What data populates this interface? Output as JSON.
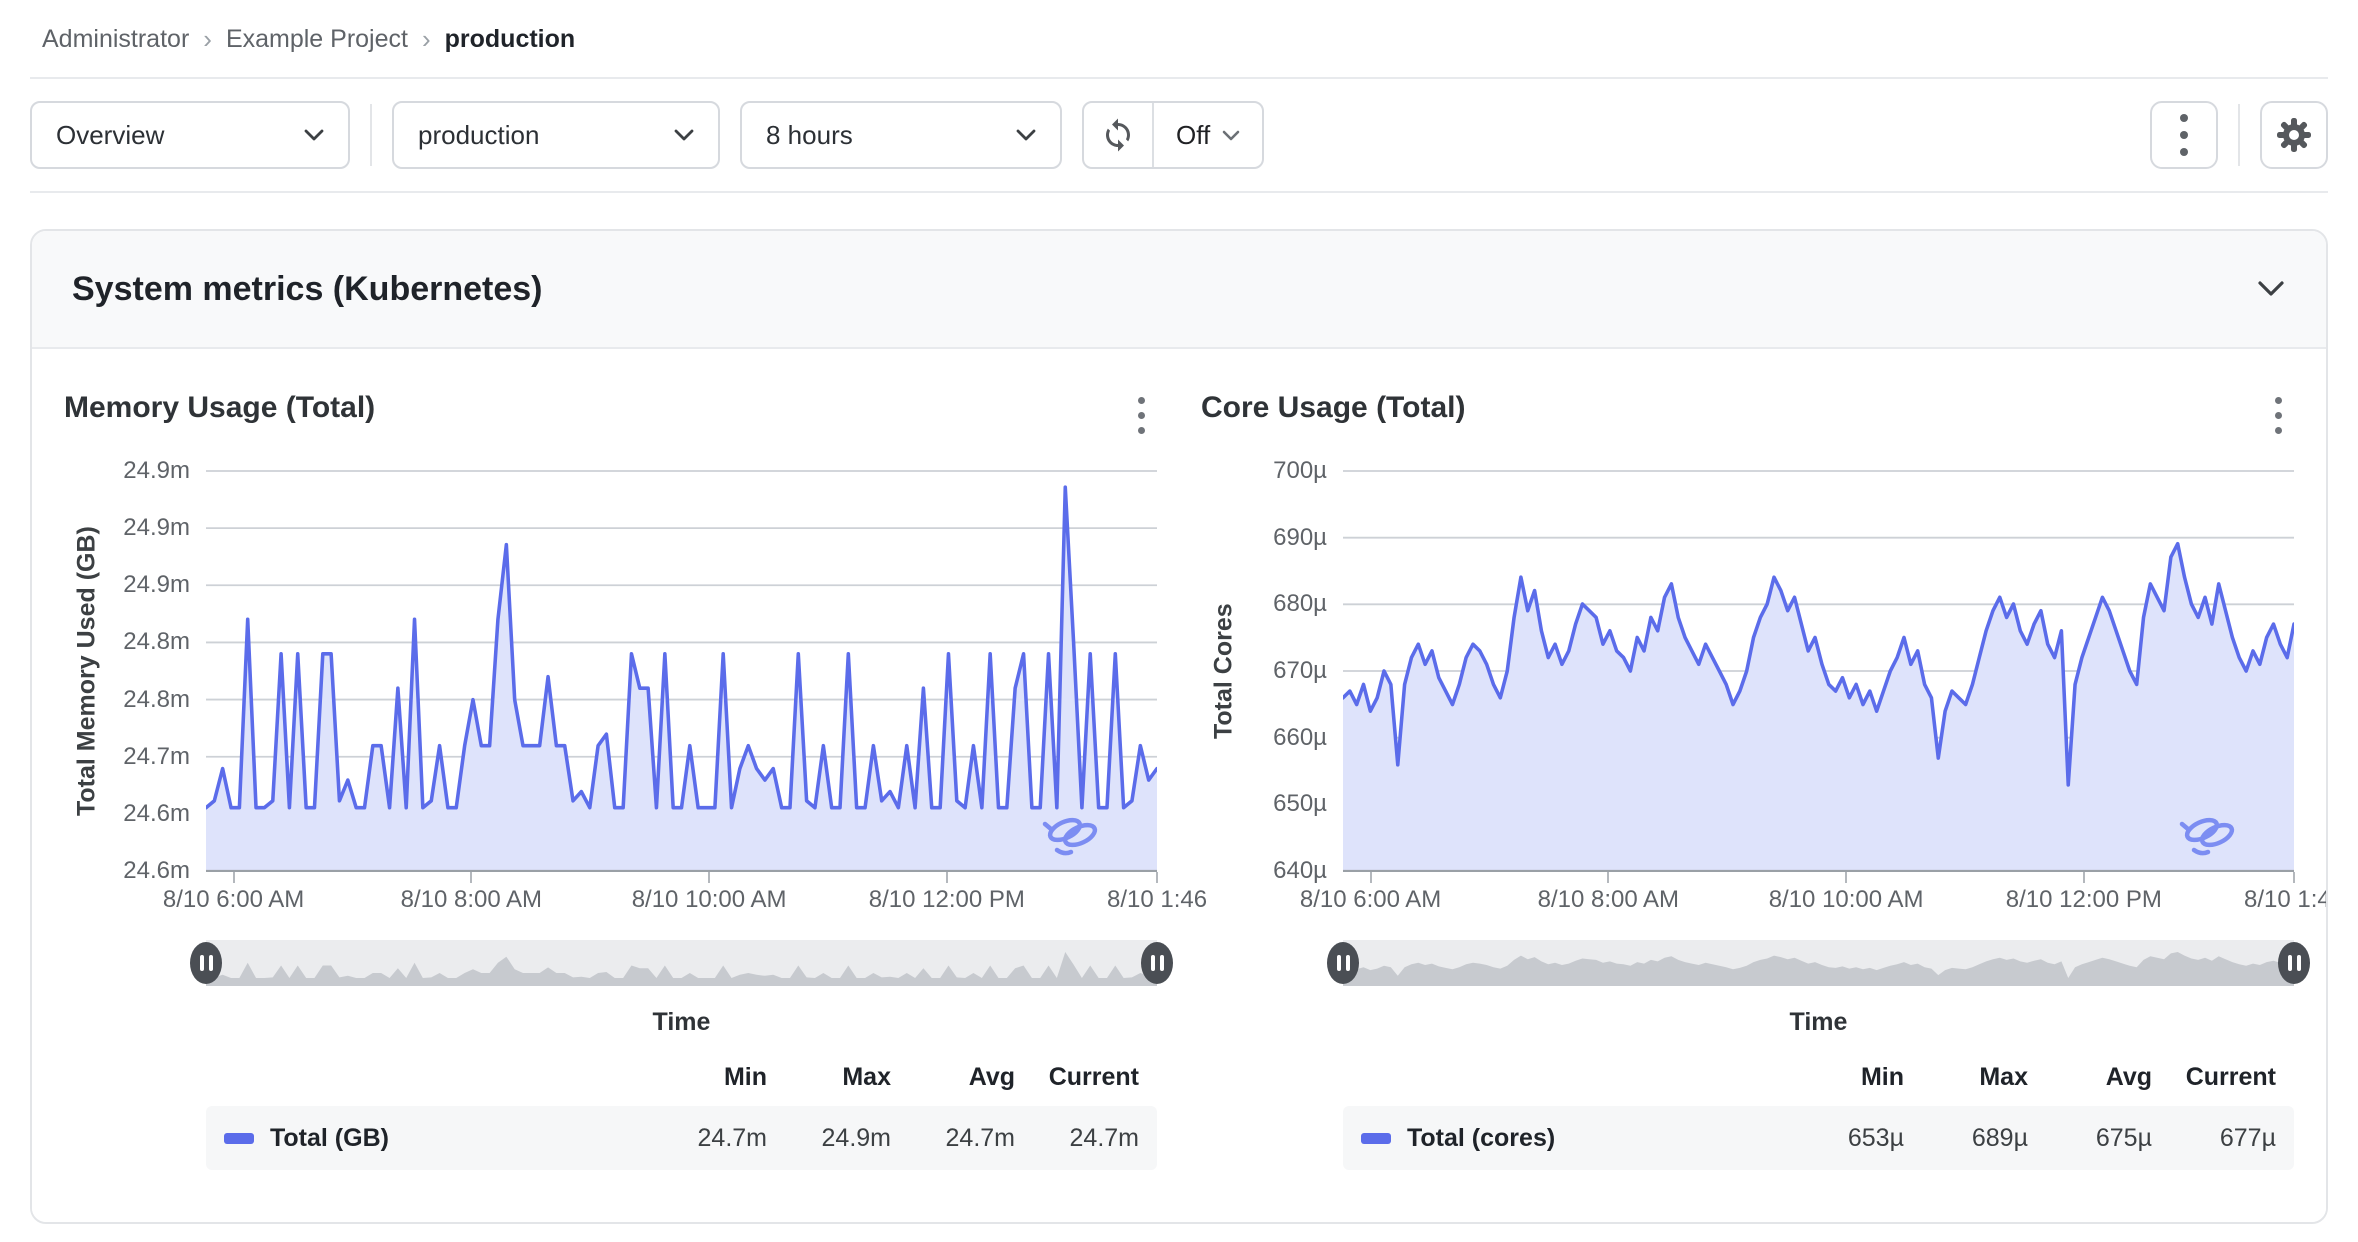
{
  "breadcrumb": {
    "items": [
      "Administrator",
      "Example Project",
      "production"
    ],
    "separator": "›"
  },
  "toolbar": {
    "view_dropdown": "Overview",
    "env_dropdown": "production",
    "time_range_dropdown": "8 hours",
    "auto_refresh_label": "Off"
  },
  "section": {
    "title": "System metrics (Kubernetes)"
  },
  "stats_headers": [
    "Min",
    "Max",
    "Avg",
    "Current"
  ],
  "colors": {
    "accent_line": "#5b6cea",
    "accent_fill": "#dee3fb",
    "grid": "#cdd1d6",
    "scrubber_track": "#ebecee",
    "scrubber_series": "#c7cacf"
  },
  "chart_data": [
    {
      "type": "area",
      "title": "Memory Usage (Total)",
      "ylabel": "Total Memory Used (GB)",
      "xlabel": "Time",
      "grid": true,
      "legend_position": "bottom-table",
      "ylim": [
        24.6,
        24.95
      ],
      "y_tick_labels": [
        "24.9m",
        "24.9m",
        "24.9m",
        "24.8m",
        "24.8m",
        "24.7m",
        "24.6m",
        "24.6m"
      ],
      "x_tick_labels": [
        "8/10 6:00 AM",
        "8/10 8:00 AM",
        "8/10 10:00 AM",
        "8/10 12:00 PM",
        "8/10 1:46"
      ],
      "x_tick_pos": [
        0.029,
        0.279,
        0.529,
        0.779,
        1.0
      ],
      "line_color": "#5b6cea",
      "fill_color": "#dee3fb",
      "series": [
        {
          "name": "Total (GB)",
          "values_unit": "milli-GB",
          "values": [
            24.656,
            24.662,
            24.69,
            24.656,
            24.656,
            24.82,
            24.656,
            24.656,
            24.662,
            24.79,
            24.656,
            24.79,
            24.656,
            24.656,
            24.79,
            24.79,
            24.662,
            24.68,
            24.656,
            24.656,
            24.71,
            24.71,
            24.656,
            24.76,
            24.656,
            24.82,
            24.656,
            24.662,
            24.71,
            24.656,
            24.656,
            24.71,
            24.75,
            24.71,
            24.71,
            24.82,
            24.885,
            24.75,
            24.71,
            24.71,
            24.71,
            24.77,
            24.71,
            24.71,
            24.662,
            24.67,
            24.656,
            24.71,
            24.72,
            24.656,
            24.656,
            24.79,
            24.76,
            24.76,
            24.656,
            24.79,
            24.656,
            24.656,
            24.71,
            24.656,
            24.656,
            24.656,
            24.79,
            24.656,
            24.69,
            24.71,
            24.69,
            24.68,
            24.69,
            24.656,
            24.656,
            24.79,
            24.662,
            24.656,
            24.71,
            24.656,
            24.656,
            24.79,
            24.656,
            24.656,
            24.71,
            24.662,
            24.67,
            24.656,
            24.71,
            24.656,
            24.76,
            24.656,
            24.656,
            24.79,
            24.662,
            24.656,
            24.71,
            24.656,
            24.79,
            24.656,
            24.656,
            24.76,
            24.79,
            24.656,
            24.656,
            24.79,
            24.656,
            24.935,
            24.8,
            24.656,
            24.79,
            24.656,
            24.656,
            24.79,
            24.656,
            24.662,
            24.71,
            24.68,
            24.69
          ]
        }
      ],
      "stats": {
        "min": "24.7m",
        "max": "24.9m",
        "avg": "24.7m",
        "current": "24.7m"
      }
    },
    {
      "type": "area",
      "title": "Core Usage (Total)",
      "ylabel": "Total Cores",
      "xlabel": "Time",
      "grid": true,
      "legend_position": "bottom-table",
      "ylim": [
        640,
        700
      ],
      "y_tick_labels": [
        "700µ",
        "690µ",
        "680µ",
        "670µ",
        "660µ",
        "650µ",
        "640µ"
      ],
      "x_tick_labels": [
        "8/10 6:00 AM",
        "8/10 8:00 AM",
        "8/10 10:00 AM",
        "8/10 12:00 PM",
        "8/10 1:46"
      ],
      "x_tick_pos": [
        0.029,
        0.279,
        0.529,
        0.779,
        1.0
      ],
      "line_color": "#5b6cea",
      "fill_color": "#dee3fb",
      "series": [
        {
          "name": "Total (cores)",
          "values_unit": "micro-cores",
          "values": [
            666,
            667,
            665,
            668,
            664,
            666,
            670,
            668,
            656,
            668,
            672,
            674,
            671,
            673,
            669,
            667,
            665,
            668,
            672,
            674,
            673,
            671,
            668,
            666,
            670,
            678,
            684,
            679,
            682,
            676,
            672,
            674,
            671,
            673,
            677,
            680,
            679,
            678,
            674,
            676,
            673,
            672,
            670,
            675,
            673,
            678,
            676,
            681,
            683,
            678,
            675,
            673,
            671,
            674,
            672,
            670,
            668,
            665,
            667,
            670,
            675,
            678,
            680,
            684,
            682,
            679,
            681,
            677,
            673,
            675,
            671,
            668,
            667,
            669,
            666,
            668,
            665,
            667,
            664,
            667,
            670,
            672,
            675,
            671,
            673,
            668,
            666,
            657,
            664,
            667,
            666,
            665,
            668,
            672,
            676,
            679,
            681,
            678,
            680,
            676,
            674,
            677,
            679,
            674,
            672,
            676,
            653,
            668,
            672,
            675,
            678,
            681,
            679,
            676,
            673,
            670,
            668,
            678,
            683,
            681,
            679,
            687,
            689,
            684,
            680,
            678,
            681,
            677,
            683,
            679,
            675,
            672,
            670,
            673,
            671,
            675,
            677,
            674,
            672,
            677
          ]
        }
      ],
      "stats": {
        "min": "653µ",
        "max": "689µ",
        "avg": "675µ",
        "current": "677µ"
      }
    }
  ]
}
